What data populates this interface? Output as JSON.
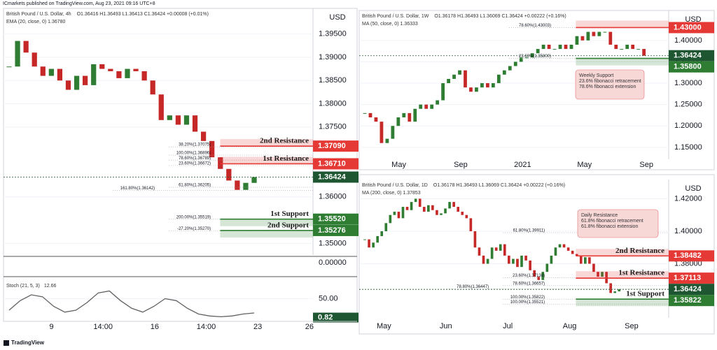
{
  "header": {
    "publisher": "ICmarkets published on TradingView.com, Aug 23, 2021 09:16 UTC+8"
  },
  "footer": {
    "brand": "TradingView"
  },
  "chart_data": [
    {
      "type": "candle",
      "title": "British Pound / U.S. Dollar, 4h",
      "legend_text": [
        "O1.36416 H1.36493 L1.36413 C1.36424 +0.00008 (+0.01%)",
        "EMA (20, close, 0) 1.36780"
      ],
      "currency": "USD",
      "x_labels": [
        "9",
        "14:00",
        "16",
        "14:00",
        "23",
        "26"
      ],
      "ylim": [
        1.3475,
        1.4005
      ],
      "yticks": [
        {
          "value": 1.395,
          "label": "1.39500"
        },
        {
          "value": 1.39,
          "label": "1.39000"
        },
        {
          "value": 1.385,
          "label": "1.38500"
        },
        {
          "value": 1.38,
          "label": "1.38000"
        },
        {
          "value": 1.375,
          "label": "1.37500"
        },
        {
          "value": 1.36,
          "label": "1.36000"
        },
        {
          "value": 1.35,
          "label": "1.35000"
        }
      ],
      "values": [
        1.388,
        1.3935,
        1.391,
        1.388,
        1.386,
        1.3875,
        1.385,
        1.383,
        1.386,
        1.384,
        1.3885,
        1.3875,
        1.387,
        1.3855,
        1.3875,
        1.387,
        1.385,
        1.382,
        1.3765,
        1.3775,
        1.3755,
        1.3775,
        1.374,
        1.372,
        1.3685,
        1.366,
        1.3635,
        1.3615,
        1.363,
        1.36424
      ],
      "levels": [
        {
          "label": "2nd Resistance",
          "value": 1.3709,
          "tag": "1.37090",
          "kind": "resistance"
        },
        {
          "label": "1st Resistance",
          "value": 1.3671,
          "tag": "1.36710",
          "kind": "resistance"
        },
        {
          "value": 1.36424,
          "tag": "1.36424",
          "kind": "current"
        },
        {
          "label": "1st Support",
          "value": 1.3552,
          "tag": "1.35520",
          "kind": "support"
        },
        {
          "label": "2nd Support",
          "value": 1.35276,
          "tag": "1.35276",
          "kind": "support"
        }
      ],
      "fib_labels": [
        {
          "text": "38.20%(1.37075)",
          "value": 1.37075
        },
        {
          "text": "100.00%(1.36896)",
          "value": 1.36896
        },
        {
          "text": "78.60%(1.36789)",
          "value": 1.36789
        },
        {
          "text": "23.60%(1.36672)",
          "value": 1.36672
        },
        {
          "text": "61.80%(1.36205)",
          "value": 1.36205
        },
        {
          "text": "161.80%(1.36142)",
          "value": 1.36142
        },
        {
          "text": "200.00%(1.35519)",
          "value": 1.35519
        },
        {
          "text": "-27.20%(1.35270)",
          "value": 1.3527
        }
      ],
      "indicator": {
        "title": "Stoch (21, 5, 3)",
        "value_text": 12.66,
        "overlay_tick": "0.00000",
        "ylim": [
          0,
          100
        ],
        "yticks": [
          {
            "value": 50,
            "label": "50.00"
          }
        ],
        "tag": {
          "value": 0.82,
          "label": "0.82"
        },
        "values": [
          20,
          45,
          60,
          55,
          30,
          15,
          20,
          40,
          65,
          70,
          45,
          25,
          15,
          30,
          50,
          45,
          25,
          10,
          5,
          3,
          5,
          10,
          12.66
        ]
      }
    },
    {
      "type": "candle",
      "title": "British Pound / U.S. Dollar, 1W",
      "legend_text": [
        "O1.36178 H1.36493 L1.36069 C1.36424 +0.00222 (+0.16%)",
        "MA (50, close, 0) 1.36333"
      ],
      "currency": "USD",
      "x_labels": [
        "May",
        "Sep",
        "2021",
        "May",
        "Sep"
      ],
      "ylim": [
        1.122,
        1.47
      ],
      "yticks": [
        {
          "value": 1.4,
          "label": "1.40000"
        },
        {
          "value": 1.35,
          "label": "1.35000"
        },
        {
          "value": 1.3,
          "label": "1.30000"
        },
        {
          "value": 1.25,
          "label": "1.25000"
        },
        {
          "value": 1.2,
          "label": "1.20000"
        },
        {
          "value": 1.15,
          "label": "1.15000"
        }
      ],
      "values": [
        1.23,
        1.22,
        1.21,
        1.16,
        1.17,
        1.2,
        1.22,
        1.23,
        1.21,
        1.24,
        1.25,
        1.24,
        1.25,
        1.26,
        1.3,
        1.31,
        1.32,
        1.33,
        1.29,
        1.28,
        1.29,
        1.3,
        1.29,
        1.3,
        1.32,
        1.33,
        1.34,
        1.35,
        1.36,
        1.36,
        1.37,
        1.38,
        1.39,
        1.38,
        1.38,
        1.39,
        1.38,
        1.39,
        1.41,
        1.4,
        1.42,
        1.41,
        1.42,
        1.42,
        1.39,
        1.38,
        1.38,
        1.39,
        1.38,
        1.38,
        1.36424
      ],
      "levels": [
        {
          "value": 1.43,
          "tag": "1.43000",
          "kind": "resistance"
        },
        {
          "value": 1.36424,
          "tag": "1.36424",
          "kind": "current"
        },
        {
          "value": 1.358,
          "tag": "1.35800",
          "kind": "support"
        }
      ],
      "fib_labels": [
        {
          "text": "78.60%(1.43003)",
          "value": 1.43003
        },
        {
          "text": "23.60%(1.35800)",
          "value": 1.358
        }
      ],
      "note": [
        "Weekly Support",
        "23.6% fibonacci retracement",
        "78.6% fibonacci extension"
      ]
    },
    {
      "type": "candle",
      "title": "British Pound / U.S. Dollar, 1D",
      "legend_text": [
        "O1.36178 H1.36493 L1.36069 C1.36424 +0.00222 (+0.16%)",
        "MA (200, close, 0) 1.37853"
      ],
      "currency": "USD",
      "x_labels": [
        "May",
        "Jun",
        "Jul",
        "Aug",
        "Sep"
      ],
      "ylim": [
        1.3467,
        1.4318
      ],
      "yticks": [
        {
          "value": 1.42,
          "label": "1.42000"
        },
        {
          "value": 1.4,
          "label": "1.40000"
        },
        {
          "value": 1.38,
          "label": "1.38000"
        }
      ],
      "values": [
        1.395,
        1.39,
        1.393,
        1.397,
        1.4,
        1.405,
        1.41,
        1.412,
        1.408,
        1.415,
        1.413,
        1.418,
        1.42,
        1.415,
        1.412,
        1.416,
        1.413,
        1.41,
        1.411,
        1.414,
        1.418,
        1.415,
        1.412,
        1.41,
        1.408,
        1.4,
        1.39,
        1.385,
        1.38,
        1.383,
        1.39,
        1.388,
        1.392,
        1.385,
        1.38,
        1.383,
        1.378,
        1.385,
        1.382,
        1.376,
        1.372,
        1.37,
        1.375,
        1.38,
        1.385,
        1.39,
        1.392,
        1.39,
        1.388,
        1.386,
        1.385,
        1.38,
        1.384,
        1.38,
        1.375,
        1.372,
        1.375,
        1.368,
        1.362,
        1.363,
        1.36424
      ],
      "levels": [
        {
          "label": "2nd Resistance",
          "value": 1.38482,
          "tag": "1.38482",
          "kind": "resistance"
        },
        {
          "label": "1st Resistance",
          "value": 1.37113,
          "tag": "1.37113",
          "kind": "resistance"
        },
        {
          "value": 1.36424,
          "tag": "1.36424",
          "kind": "current"
        },
        {
          "label": "1st Support",
          "value": 1.35822,
          "tag": "1.35822",
          "kind": "support"
        }
      ],
      "fib_labels": [
        {
          "text": "61.80%(1.39911)",
          "value": 1.39911
        },
        {
          "text": "23.60%(1.37138)",
          "value": 1.37138
        },
        {
          "text": "78.60%(1.36657)",
          "value": 1.36657
        },
        {
          "text": "78.80%(1.36447)",
          "value": 1.36447
        },
        {
          "text": "100.00%(1.35822)",
          "value": 1.35822
        },
        {
          "text": "100.00%(1.35521)",
          "value": 1.35521
        }
      ],
      "note": [
        "Daily Resistance",
        "61.8% fibonacci retracement",
        "61.8% fibonacci extension"
      ]
    }
  ]
}
